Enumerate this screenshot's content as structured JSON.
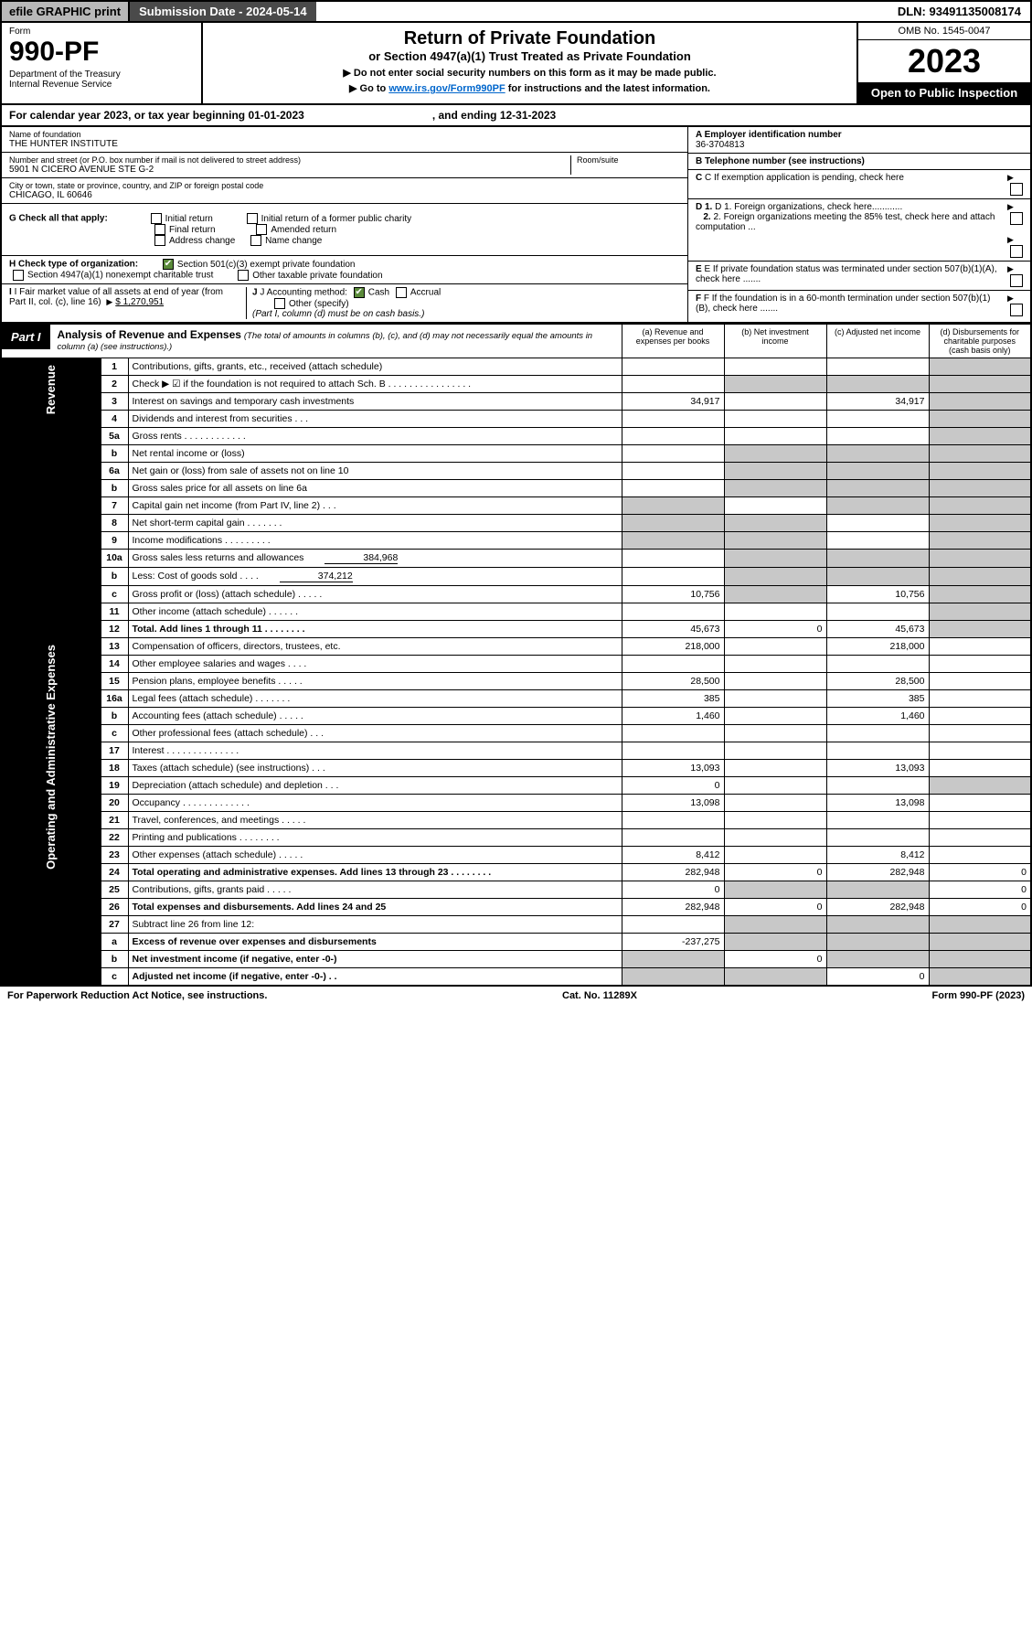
{
  "topbar": {
    "efile": "efile GRAPHIC print",
    "submission": "Submission Date - 2024-05-14",
    "dln": "DLN: 93491135008174"
  },
  "header": {
    "form": "Form",
    "num": "990-PF",
    "dept": "Department of the Treasury\nInternal Revenue Service",
    "title": "Return of Private Foundation",
    "sub1": "or Section 4947(a)(1) Trust Treated as Private Foundation",
    "sub2a": "▶ Do not enter social security numbers on this form as it may be made public.",
    "sub2b": "▶ Go to",
    "link": "www.irs.gov/Form990PF",
    "sub2c": "for instructions and the latest information.",
    "omb": "OMB No. 1545-0047",
    "year": "2023",
    "insp": "Open to Public Inspection"
  },
  "cal": {
    "text": "For calendar year 2023, or tax year beginning 01-01-2023",
    "end": ", and ending 12-31-2023"
  },
  "info": {
    "name_lbl": "Name of foundation",
    "name": "THE HUNTER INSTITUTE",
    "addr_lbl": "Number and street (or P.O. box number if mail is not delivered to street address)",
    "addr": "5901 N CICERO AVENUE STE G-2",
    "room_lbl": "Room/suite",
    "city_lbl": "City or town, state or province, country, and ZIP or foreign postal code",
    "city": "CHICAGO, IL  60646",
    "ein_lbl": "A Employer identification number",
    "ein": "36-3704813",
    "tel_lbl": "B Telephone number (see instructions)",
    "c": "C If exemption application is pending, check here",
    "d1": "D 1. Foreign organizations, check here............",
    "d2": "2. Foreign organizations meeting the 85% test, check here and attach computation ...",
    "e": "E If private foundation status was terminated under section 507(b)(1)(A), check here .......",
    "f": "F If the foundation is in a 60-month termination under section 507(b)(1)(B), check here .......",
    "g_lbl": "G Check all that apply:",
    "g_opts": [
      "Initial return",
      "Initial return of a former public charity",
      "Final return",
      "Amended return",
      "Address change",
      "Name change"
    ],
    "h_lbl": "H Check type of organization:",
    "h1": "Section 501(c)(3) exempt private foundation",
    "h2": "Section 4947(a)(1) nonexempt charitable trust",
    "h3": "Other taxable private foundation",
    "i_lbl": "I Fair market value of all assets at end of year (from Part II, col. (c), line 16)",
    "i_val": "$  1,270,951",
    "j_lbl": "J Accounting method:",
    "j1": "Cash",
    "j2": "Accrual",
    "j3": "Other (specify)",
    "j_note": "(Part I, column (d) must be on cash basis.)"
  },
  "part1": {
    "tag": "Part I",
    "title": "Analysis of Revenue and Expenses",
    "note": "(The total of amounts in columns (b), (c), and (d) may not necessarily equal the amounts in column (a) (see instructions).)",
    "cols": {
      "a": "(a) Revenue and expenses per books",
      "b": "(b) Net investment income",
      "c": "(c) Adjusted net income",
      "d": "(d) Disbursements for charitable purposes (cash basis only)"
    }
  },
  "side": {
    "rev": "Revenue",
    "exp": "Operating and Administrative Expenses"
  },
  "rows": [
    {
      "n": "1",
      "lbl": "Contributions, gifts, grants, etc., received (attach schedule)",
      "a": "",
      "b": "",
      "c": "",
      "d": "",
      "gd": true
    },
    {
      "n": "2",
      "lbl": "Check ▶ ☑ if the foundation is not required to attach Sch. B  .  .  .  .  .  .  .  .  .  .  .  .  .  .  .  .",
      "gb": true,
      "gc": true,
      "gd": true
    },
    {
      "n": "3",
      "lbl": "Interest on savings and temporary cash investments",
      "a": "34,917",
      "c": "34,917",
      "gd": true
    },
    {
      "n": "4",
      "lbl": "Dividends and interest from securities  .  .  .",
      "gd": true
    },
    {
      "n": "5a",
      "lbl": "Gross rents  .  .  .  .  .  .  .  .  .  .  .  .",
      "gd": true
    },
    {
      "n": "b",
      "lbl": "Net rental income or (loss)",
      "gb": true,
      "gc": true,
      "gd": true
    },
    {
      "n": "6a",
      "lbl": "Net gain or (loss) from sale of assets not on line 10",
      "gb": true,
      "gc": true,
      "gd": true
    },
    {
      "n": "b",
      "lbl": "Gross sales price for all assets on line 6a",
      "gb": true,
      "gc": true,
      "gd": true
    },
    {
      "n": "7",
      "lbl": "Capital gain net income (from Part IV, line 2)  .  .  .",
      "ga": true,
      "gc": true,
      "gd": true
    },
    {
      "n": "8",
      "lbl": "Net short-term capital gain  .  .  .  .  .  .  .",
      "ga": true,
      "gb": true,
      "gd": true
    },
    {
      "n": "9",
      "lbl": "Income modifications  .  .  .  .  .  .  .  .  .",
      "ga": true,
      "gb": true,
      "gd": true
    },
    {
      "n": "10a",
      "lbl": "Gross sales less returns and allowances",
      "sub": "384,968",
      "gb": true,
      "gc": true,
      "gd": true
    },
    {
      "n": "b",
      "lbl": "Less: Cost of goods sold  .  .  .  .",
      "sub": "374,212",
      "gb": true,
      "gc": true,
      "gd": true
    },
    {
      "n": "c",
      "lbl": "Gross profit or (loss) (attach schedule)  .  .  .  .  .",
      "a": "10,756",
      "gb": true,
      "c": "10,756",
      "gd": true
    },
    {
      "n": "11",
      "lbl": "Other income (attach schedule)  .  .  .  .  .  .",
      "gd": true
    },
    {
      "n": "12",
      "lbl": "Total. Add lines 1 through 11  .  .  .  .  .  .  .  .",
      "bold": true,
      "a": "45,673",
      "b": "0",
      "c": "45,673",
      "gd": true
    },
    {
      "n": "13",
      "lbl": "Compensation of officers, directors, trustees, etc.",
      "a": "218,000",
      "c": "218,000"
    },
    {
      "n": "14",
      "lbl": "Other employee salaries and wages  .  .  .  ."
    },
    {
      "n": "15",
      "lbl": "Pension plans, employee benefits  .  .  .  .  .",
      "a": "28,500",
      "c": "28,500"
    },
    {
      "n": "16a",
      "lbl": "Legal fees (attach schedule)  .  .  .  .  .  .  .",
      "a": "385",
      "c": "385"
    },
    {
      "n": "b",
      "lbl": "Accounting fees (attach schedule)  .  .  .  .  .",
      "a": "1,460",
      "c": "1,460"
    },
    {
      "n": "c",
      "lbl": "Other professional fees (attach schedule)  .  .  ."
    },
    {
      "n": "17",
      "lbl": "Interest  .  .  .  .  .  .  .  .  .  .  .  .  .  ."
    },
    {
      "n": "18",
      "lbl": "Taxes (attach schedule) (see instructions)  .  .  .",
      "a": "13,093",
      "c": "13,093"
    },
    {
      "n": "19",
      "lbl": "Depreciation (attach schedule) and depletion  .  .  .",
      "a": "0",
      "gd": true
    },
    {
      "n": "20",
      "lbl": "Occupancy  .  .  .  .  .  .  .  .  .  .  .  .  .",
      "a": "13,098",
      "c": "13,098"
    },
    {
      "n": "21",
      "lbl": "Travel, conferences, and meetings  .  .  .  .  ."
    },
    {
      "n": "22",
      "lbl": "Printing and publications  .  .  .  .  .  .  .  ."
    },
    {
      "n": "23",
      "lbl": "Other expenses (attach schedule)  .  .  .  .  .",
      "a": "8,412",
      "c": "8,412"
    },
    {
      "n": "24",
      "lbl": "Total operating and administrative expenses. Add lines 13 through 23  .  .  .  .  .  .  .  .",
      "bold": true,
      "a": "282,948",
      "b": "0",
      "c": "282,948",
      "d": "0"
    },
    {
      "n": "25",
      "lbl": "Contributions, gifts, grants paid  .  .  .  .  .",
      "a": "0",
      "gb": true,
      "gc": true,
      "d": "0"
    },
    {
      "n": "26",
      "lbl": "Total expenses and disbursements. Add lines 24 and 25",
      "bold": true,
      "a": "282,948",
      "b": "0",
      "c": "282,948",
      "d": "0"
    },
    {
      "n": "27",
      "lbl": "Subtract line 26 from line 12:",
      "gb": true,
      "gc": true,
      "gd": true
    },
    {
      "n": "a",
      "lbl": "Excess of revenue over expenses and disbursements",
      "bold": true,
      "a": "-237,275",
      "gb": true,
      "gc": true,
      "gd": true
    },
    {
      "n": "b",
      "lbl": "Net investment income (if negative, enter -0-)",
      "bold": true,
      "ga": true,
      "b": "0",
      "gc": true,
      "gd": true
    },
    {
      "n": "c",
      "lbl": "Adjusted net income (if negative, enter -0-)  .  .",
      "bold": true,
      "ga": true,
      "gb": true,
      "c": "0",
      "gd": true
    }
  ],
  "footer": {
    "left": "For Paperwork Reduction Act Notice, see instructions.",
    "mid": "Cat. No. 11289X",
    "right": "Form 990-PF (2023)"
  },
  "colors": {
    "check": "#5a8a3a",
    "grey": "#c8c8c8",
    "link": "#0066cc"
  }
}
